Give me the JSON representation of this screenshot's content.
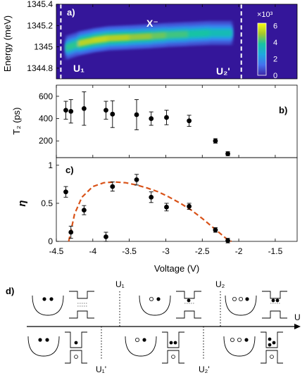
{
  "shared_x": {
    "label": "Voltage (V)",
    "ticks": [
      "-4.5",
      "-4",
      "-3.5",
      "-3",
      "-2.5",
      "-2",
      "-1.5"
    ],
    "tick_values": [
      -4.5,
      -4,
      -3.5,
      -3,
      -2.5,
      -2,
      -1.5
    ],
    "range": [
      -4.5,
      -1.2
    ]
  },
  "chart_data": [
    {
      "panel": "a)",
      "type": "heatmap",
      "ylabel": "Energy (meV)",
      "y_ticks": [
        "1345.4",
        "1345.2",
        "1345",
        "1344.8"
      ],
      "y_tick_values": [
        1345.4,
        1345.2,
        1345.0,
        1344.8
      ],
      "ylim": [
        1344.7,
        1345.4
      ],
      "annotation": "X⁻",
      "markers": [
        {
          "label": "U₁",
          "x": -4.37
        },
        {
          "label": "U₂'",
          "x": -2.1
        }
      ],
      "colorbar": {
        "exponent_label": "×10³",
        "ticks": [
          "6",
          "4",
          "2",
          "0"
        ],
        "tick_values": [
          6,
          4,
          2,
          0
        ],
        "range": [
          0,
          6.3
        ]
      },
      "ridge": {
        "x": [
          -4.37,
          -4.2,
          -4.0,
          -3.8,
          -3.5,
          -3.2,
          -3.0,
          -2.7,
          -2.4,
          -2.1
        ],
        "energy": [
          1344.99,
          1345.03,
          1345.06,
          1345.08,
          1345.09,
          1345.1,
          1345.11,
          1345.12,
          1345.13,
          1345.13
        ],
        "peak": [
          3.0,
          5.8,
          6.0,
          6.0,
          5.6,
          5.2,
          4.8,
          4.4,
          4.0,
          3.6
        ]
      }
    },
    {
      "panel": "b)",
      "type": "scatter",
      "ylabel": "T₂ (ps)",
      "y_ticks": [
        "600",
        "400",
        "200"
      ],
      "y_tick_values": [
        600,
        400,
        200
      ],
      "ylim": [
        50,
        700
      ],
      "points": [
        {
          "x": -4.37,
          "y": 475,
          "err": 80
        },
        {
          "x": -4.3,
          "y": 465,
          "err": 105
        },
        {
          "x": -4.12,
          "y": 490,
          "err": 150
        },
        {
          "x": -3.82,
          "y": 475,
          "err": 80
        },
        {
          "x": -3.73,
          "y": 440,
          "err": 120
        },
        {
          "x": -3.4,
          "y": 435,
          "err": 135
        },
        {
          "x": -3.2,
          "y": 400,
          "err": 60
        },
        {
          "x": -2.99,
          "y": 410,
          "err": 65
        },
        {
          "x": -2.68,
          "y": 380,
          "err": 50
        },
        {
          "x": -2.32,
          "y": 200,
          "err": 20
        },
        {
          "x": -2.15,
          "y": 85,
          "err": 18
        }
      ]
    },
    {
      "panel": "c)",
      "type": "scatter",
      "ylabel": "η",
      "y_ticks": [
        "1",
        "0.5",
        "0"
      ],
      "y_tick_values": [
        1,
        0.5,
        0
      ],
      "ylim": [
        0,
        1.1
      ],
      "points": [
        {
          "x": -4.37,
          "y": 0.65,
          "err": 0.07
        },
        {
          "x": -4.3,
          "y": 0.12,
          "err": 0.08
        },
        {
          "x": -4.12,
          "y": 0.41,
          "err": 0.06
        },
        {
          "x": -3.82,
          "y": 0.06,
          "err": 0.06
        },
        {
          "x": -3.73,
          "y": 0.72,
          "err": 0.06
        },
        {
          "x": -3.4,
          "y": 0.81,
          "err": 0.07
        },
        {
          "x": -3.2,
          "y": 0.58,
          "err": 0.07
        },
        {
          "x": -2.99,
          "y": 0.45,
          "err": 0.05
        },
        {
          "x": -2.68,
          "y": 0.46,
          "err": 0.04
        },
        {
          "x": -2.32,
          "y": 0.15,
          "err": 0.03
        },
        {
          "x": -2.15,
          "y": 0.01,
          "err": 0.03
        }
      ],
      "curve": {
        "color": "#d95319",
        "x": [
          -4.33,
          -4.25,
          -4.15,
          -4.0,
          -3.85,
          -3.7,
          -3.55,
          -3.4,
          -3.25,
          -3.1,
          -2.95,
          -2.8,
          -2.65,
          -2.5,
          -2.35,
          -2.25,
          -2.15,
          -2.1
        ],
        "y": [
          0.0,
          0.36,
          0.58,
          0.72,
          0.77,
          0.78,
          0.77,
          0.74,
          0.7,
          0.65,
          0.58,
          0.5,
          0.41,
          0.3,
          0.18,
          0.1,
          0.02,
          0.0
        ]
      }
    }
  ],
  "diagram": {
    "panel": "d)",
    "axis_label": "U",
    "top_markers": [
      "U₁",
      "U₂"
    ],
    "bottom_markers": [
      "U₁'",
      "U₂'"
    ]
  }
}
